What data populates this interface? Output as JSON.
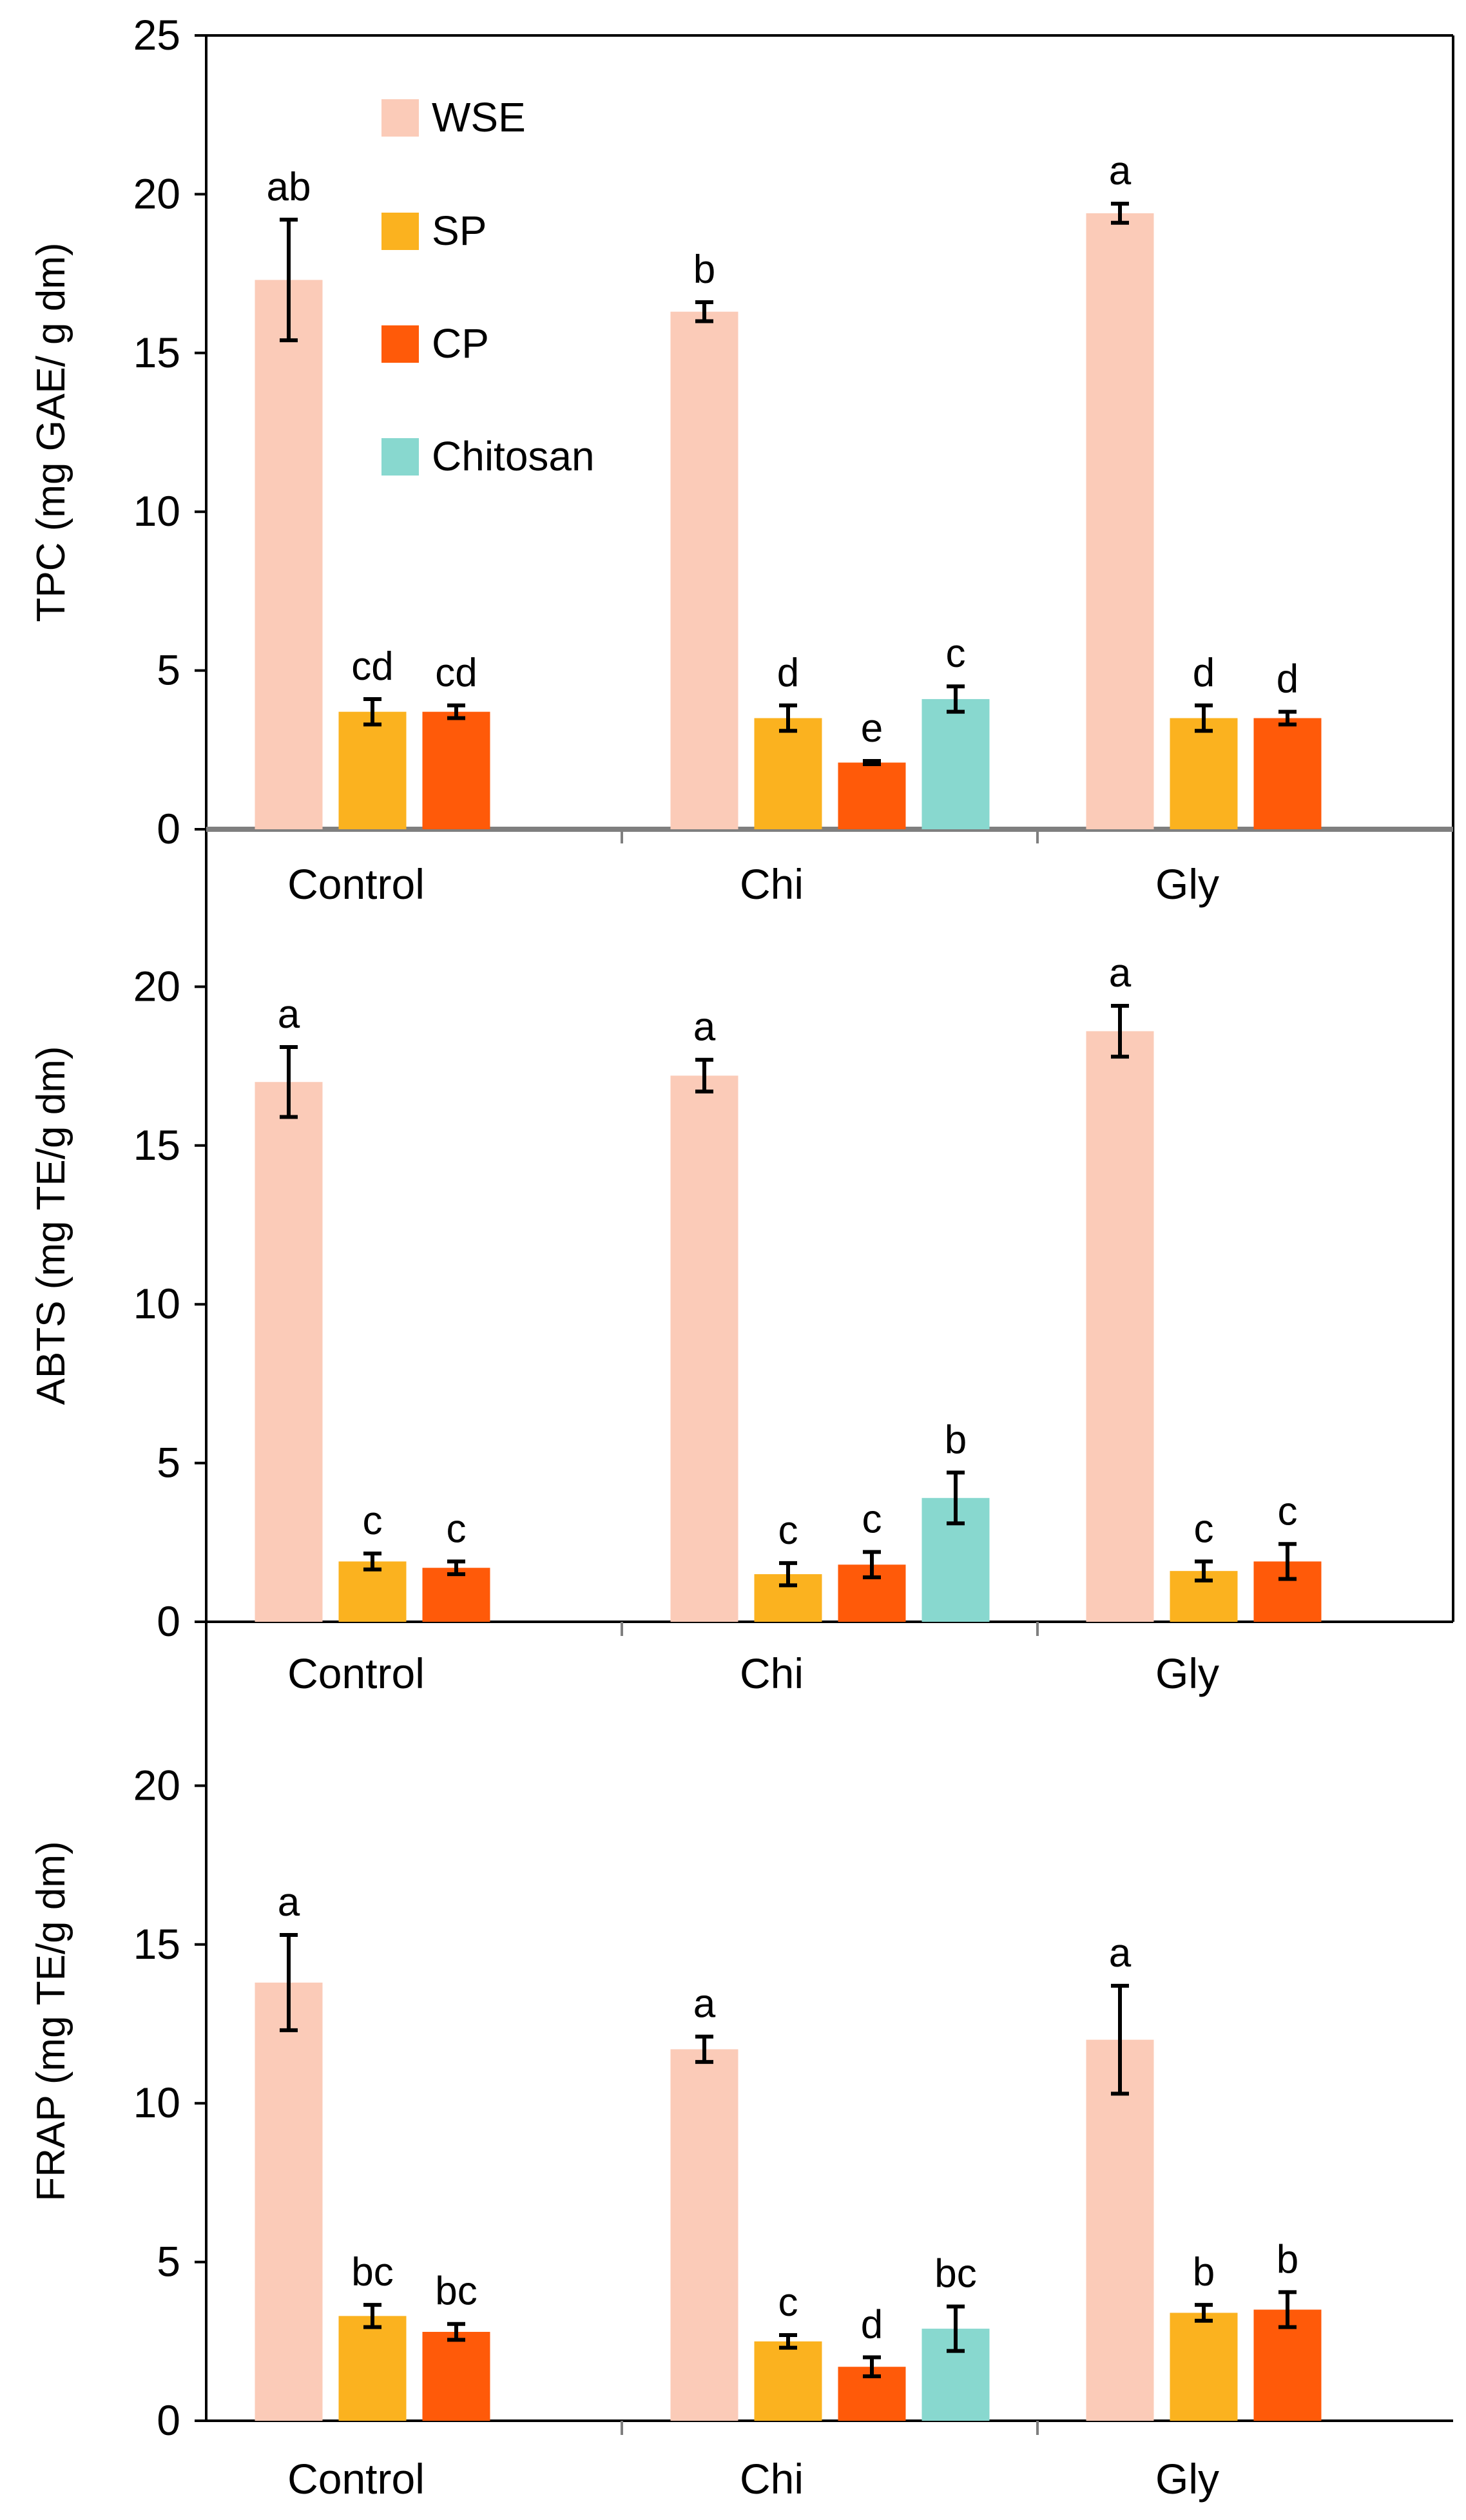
{
  "colors": {
    "WSE": "#FBCBB8",
    "SP": "#FBB21F",
    "CP": "#FF5A09",
    "Chitosan": "#88D8CF"
  },
  "chart_data": {
    "type": "bar",
    "series_names": [
      "WSE",
      "SP",
      "CP",
      "Chitosan"
    ],
    "legend": [
      "WSE",
      "SP",
      "CP",
      "Chitosan"
    ],
    "panels": [
      {
        "id": "tpc",
        "ylabel": "TPC (mg GAE/ g dm)",
        "ylim": [
          0,
          25
        ],
        "yticks": [
          "0",
          "5",
          "10",
          "15",
          "20",
          "25"
        ],
        "categories": [
          "Control",
          "Chi",
          "Gly"
        ],
        "groups": [
          {
            "category": "Control",
            "bars": [
              {
                "series": "WSE",
                "value": 17.3,
                "error": 1.9,
                "sig": "ab"
              },
              {
                "series": "SP",
                "value": 3.7,
                "error": 0.4,
                "sig": "cd"
              },
              {
                "series": "CP",
                "value": 3.7,
                "error": 0.2,
                "sig": "cd"
              }
            ]
          },
          {
            "category": "Chi",
            "bars": [
              {
                "series": "WSE",
                "value": 16.3,
                "error": 0.3,
                "sig": "b"
              },
              {
                "series": "SP",
                "value": 3.5,
                "error": 0.4,
                "sig": "d"
              },
              {
                "series": "CP",
                "value": 2.1,
                "error": 0.05,
                "sig": "e"
              },
              {
                "series": "Chitosan",
                "value": 4.1,
                "error": 0.4,
                "sig": "c"
              }
            ]
          },
          {
            "category": "Gly",
            "bars": [
              {
                "series": "WSE",
                "value": 19.4,
                "error": 0.3,
                "sig": "a"
              },
              {
                "series": "SP",
                "value": 3.5,
                "error": 0.4,
                "sig": "d"
              },
              {
                "series": "CP",
                "value": 3.5,
                "error": 0.2,
                "sig": "d"
              }
            ]
          }
        ]
      },
      {
        "id": "abts",
        "ylabel": "ABTS  (mg TE/g dm)",
        "ylim": [
          0,
          25
        ],
        "yticks": [
          "0",
          "5",
          "10",
          "15",
          "20"
        ],
        "categories": [
          "Control",
          "Chi",
          "Gly"
        ],
        "groups": [
          {
            "category": "Control",
            "bars": [
              {
                "series": "WSE",
                "value": 17.0,
                "error": 1.1,
                "sig": "a"
              },
              {
                "series": "SP",
                "value": 1.9,
                "error": 0.25,
                "sig": "c"
              },
              {
                "series": "CP",
                "value": 1.7,
                "error": 0.2,
                "sig": "c"
              }
            ]
          },
          {
            "category": "Chi",
            "bars": [
              {
                "series": "WSE",
                "value": 17.2,
                "error": 0.5,
                "sig": "a"
              },
              {
                "series": "SP",
                "value": 1.5,
                "error": 0.35,
                "sig": "c"
              },
              {
                "series": "CP",
                "value": 1.8,
                "error": 0.4,
                "sig": "c"
              },
              {
                "series": "Chitosan",
                "value": 3.9,
                "error": 0.8,
                "sig": "b"
              }
            ]
          },
          {
            "category": "Gly",
            "bars": [
              {
                "series": "WSE",
                "value": 18.6,
                "error": 0.8,
                "sig": "a"
              },
              {
                "series": "SP",
                "value": 1.6,
                "error": 0.3,
                "sig": "c"
              },
              {
                "series": "CP",
                "value": 1.9,
                "error": 0.55,
                "sig": "c"
              }
            ]
          }
        ]
      },
      {
        "id": "frap",
        "ylabel": "FRAP (mg TE/g dm)",
        "ylim": [
          0,
          25
        ],
        "yticks": [
          "0",
          "5",
          "10",
          "15",
          "20"
        ],
        "categories": [
          "Control",
          "Chi",
          "Gly"
        ],
        "groups": [
          {
            "category": "Control",
            "bars": [
              {
                "series": "WSE",
                "value": 13.8,
                "error": 1.5,
                "sig": "a"
              },
              {
                "series": "SP",
                "value": 3.3,
                "error": 0.35,
                "sig": "bc"
              },
              {
                "series": "CP",
                "value": 2.8,
                "error": 0.25,
                "sig": "bc"
              }
            ]
          },
          {
            "category": "Chi",
            "bars": [
              {
                "series": "WSE",
                "value": 11.7,
                "error": 0.4,
                "sig": "a"
              },
              {
                "series": "SP",
                "value": 2.5,
                "error": 0.2,
                "sig": "c"
              },
              {
                "series": "CP",
                "value": 1.7,
                "error": 0.3,
                "sig": "d"
              },
              {
                "series": "Chitosan",
                "value": 2.9,
                "error": 0.7,
                "sig": "bc"
              }
            ]
          },
          {
            "category": "Gly",
            "bars": [
              {
                "series": "WSE",
                "value": 12.0,
                "error": 1.7,
                "sig": "a"
              },
              {
                "series": "SP",
                "value": 3.4,
                "error": 0.25,
                "sig": "b"
              },
              {
                "series": "CP",
                "value": 3.5,
                "error": 0.55,
                "sig": "b"
              }
            ]
          }
        ]
      }
    ]
  }
}
